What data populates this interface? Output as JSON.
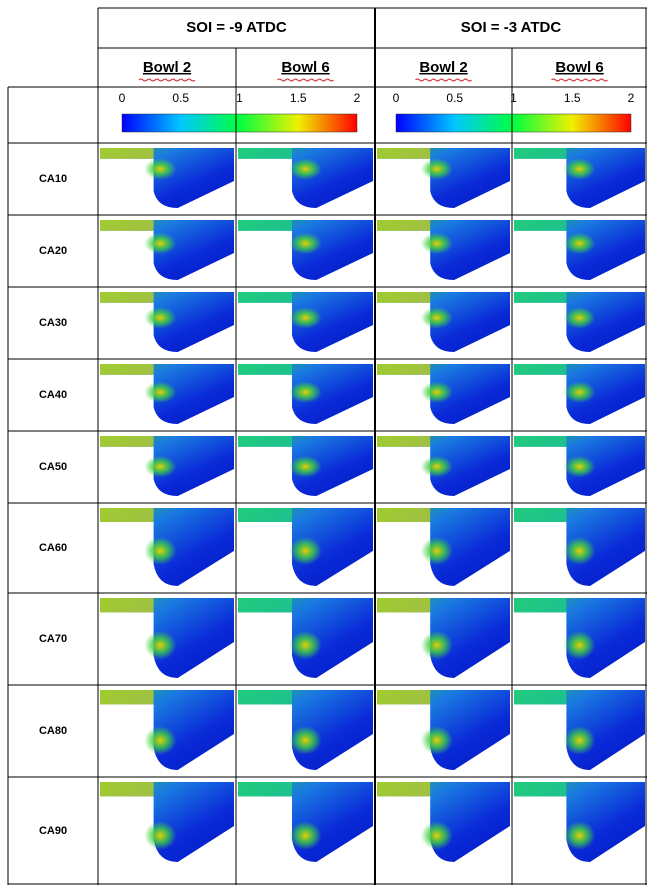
{
  "header": {
    "groups": [
      "SOI = -9 ATDC",
      "SOI = -3 ATDC"
    ],
    "subgroups": [
      "Bowl 2",
      "Bowl 6",
      "Bowl 2",
      "Bowl 6"
    ]
  },
  "colorbars": [
    {
      "ticks": [
        "0",
        "0.5",
        "1",
        "1.5",
        "2"
      ]
    },
    {
      "ticks": [
        "0",
        "0.5",
        "1",
        "1.5",
        "2"
      ]
    }
  ],
  "rows": [
    "CA10",
    "CA20",
    "CA30",
    "CA40",
    "CA50",
    "CA60",
    "CA70",
    "CA80",
    "CA90"
  ]
}
